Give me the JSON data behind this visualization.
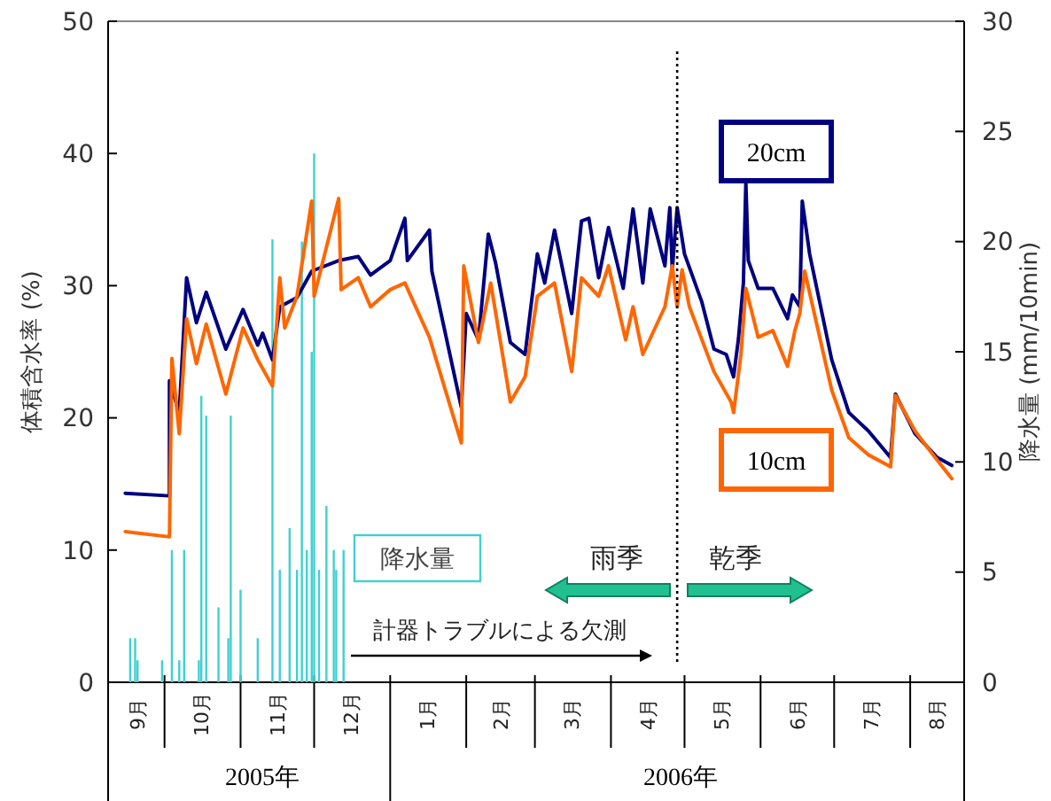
{
  "chart_data": {
    "type": "line",
    "ylabel": "体積含水率 (%)",
    "y2label": "降水量 (mm/10min)",
    "xlim": [
      "2005-09-08",
      "2006-08-23"
    ],
    "xticks": [
      {
        "value": "2005-09-20",
        "label": "9月"
      },
      {
        "value": "2005-10-01",
        "label": null
      },
      {
        "value": "2005-10-16",
        "label": "10月"
      },
      {
        "value": "2005-11-01",
        "label": null
      },
      {
        "value": "2005-11-16",
        "label": "11月"
      },
      {
        "value": "2005-12-01",
        "label": null
      },
      {
        "value": "2005-12-16",
        "label": "12月"
      },
      {
        "value": "2006-01-01",
        "label": null
      },
      {
        "value": "2006-01-16",
        "label": "1月"
      },
      {
        "value": "2006-02-01",
        "label": null
      },
      {
        "value": "2006-02-15",
        "label": "2月"
      },
      {
        "value": "2006-03-01",
        "label": null
      },
      {
        "value": "2006-03-16",
        "label": "3月"
      },
      {
        "value": "2006-04-01",
        "label": null
      },
      {
        "value": "2006-04-16",
        "label": "4月"
      },
      {
        "value": "2006-05-01",
        "label": null
      },
      {
        "value": "2006-05-16",
        "label": "5月"
      },
      {
        "value": "2006-06-01",
        "label": null
      },
      {
        "value": "2006-06-16",
        "label": "6月"
      },
      {
        "value": "2006-07-01",
        "label": null
      },
      {
        "value": "2006-07-16",
        "label": "7月"
      },
      {
        "value": "2006-08-01",
        "label": null
      },
      {
        "value": "2006-08-12",
        "label": "8月"
      }
    ],
    "ylim": [
      0,
      50
    ],
    "yticks": [
      0,
      10,
      20,
      30,
      40,
      50
    ],
    "y2lim": [
      0,
      30
    ],
    "y2ticks": [
      0,
      5,
      10,
      15,
      20,
      25,
      30
    ],
    "grid": false,
    "line_style": "solid",
    "marker": "none",
    "ref_lines": [
      {
        "axis": "x",
        "value": "2006-04-28",
        "line_style": "dotted",
        "color": "#000000"
      }
    ],
    "annotations": [
      "2005年",
      "2006年",
      "雨季",
      "乾季",
      "計器トラブルによる欠測"
    ],
    "series": [
      {
        "name": "20cm",
        "color": "#000080",
        "x": [
          "2005-09-15",
          "2005-10-03",
          "2005-10-03",
          "2005-10-07",
          "2005-10-10",
          "2005-10-14",
          "2005-10-18",
          "2005-10-26",
          "2005-11-02",
          "2005-11-08",
          "2005-11-10",
          "2005-11-14",
          "2005-11-17",
          "2005-11-24",
          "2005-11-30",
          "2005-12-11",
          "2005-12-19",
          "2005-12-24",
          "2006-01-01",
          "2006-01-07",
          "2006-01-08",
          "2006-01-17",
          "2006-01-18",
          "2006-01-30",
          "2006-02-01",
          "2006-02-06",
          "2006-02-10",
          "2006-02-13",
          "2006-02-19",
          "2006-02-25",
          "2006-03-02",
          "2006-03-05",
          "2006-03-09",
          "2006-03-16",
          "2006-03-20",
          "2006-03-23",
          "2006-03-27",
          "2006-03-31",
          "2006-04-06",
          "2006-04-10",
          "2006-04-14",
          "2006-04-17",
          "2006-04-23",
          "2006-04-25",
          "2006-04-26",
          "2006-04-28",
          "2006-05-01",
          "2006-05-08",
          "2006-05-13",
          "2006-05-18",
          "2006-05-21",
          "2006-05-23",
          "2006-05-25",
          "2006-05-26",
          "2006-05-27",
          "2006-05-31",
          "2006-06-06",
          "2006-06-12",
          "2006-06-14",
          "2006-06-17",
          "2006-06-18",
          "2006-06-21",
          "2006-06-30",
          "2006-07-07",
          "2006-07-15",
          "2006-07-24",
          "2006-07-26",
          "2006-08-03",
          "2006-08-12",
          "2006-08-18"
        ],
        "values": [
          14.3,
          14.1,
          22.8,
          20.4,
          30.6,
          27.2,
          29.5,
          25.2,
          28.2,
          25.5,
          26.4,
          24.4,
          28.4,
          29.1,
          31.1,
          31.9,
          32.2,
          30.8,
          31.9,
          35.1,
          31.9,
          34.2,
          31.1,
          20.8,
          27.9,
          25.9,
          33.9,
          31.7,
          25.7,
          24.8,
          32.4,
          30.2,
          34.2,
          27.9,
          34.9,
          35.1,
          30.6,
          34.4,
          29.8,
          35.8,
          30.2,
          35.8,
          31.5,
          35.9,
          31.2,
          35.9,
          32.4,
          28.8,
          25.2,
          24.8,
          23.1,
          26.0,
          30.2,
          37.8,
          31.9,
          29.8,
          29.8,
          27.5,
          29.3,
          28.4,
          36.4,
          32.4,
          24.4,
          20.4,
          19.0,
          17.0,
          21.8,
          18.8,
          17.0,
          16.4
        ]
      },
      {
        "name": "10cm",
        "color": "#ff6600",
        "x": [
          "2005-09-15",
          "2005-10-03",
          "2005-10-04",
          "2005-10-07",
          "2005-10-10",
          "2005-10-14",
          "2005-10-18",
          "2005-10-26",
          "2005-11-02",
          "2005-11-08",
          "2005-11-14",
          "2005-11-17",
          "2005-11-19",
          "2005-11-24",
          "2005-11-30",
          "2005-12-01",
          "2005-12-11",
          "2005-12-12",
          "2005-12-19",
          "2005-12-24",
          "2006-01-01",
          "2006-01-07",
          "2006-01-17",
          "2006-01-30",
          "2006-01-31",
          "2006-02-06",
          "2006-02-11",
          "2006-02-19",
          "2006-02-25",
          "2006-03-02",
          "2006-03-09",
          "2006-03-16",
          "2006-03-20",
          "2006-03-27",
          "2006-03-31",
          "2006-04-07",
          "2006-04-10",
          "2006-04-14",
          "2006-04-23",
          "2006-04-26",
          "2006-04-28",
          "2006-04-30",
          "2006-05-03",
          "2006-05-13",
          "2006-05-20",
          "2006-05-21",
          "2006-05-24",
          "2006-05-26",
          "2006-05-31",
          "2006-06-06",
          "2006-06-12",
          "2006-06-15",
          "2006-06-17",
          "2006-06-19",
          "2006-06-30",
          "2006-07-07",
          "2006-07-15",
          "2006-07-24",
          "2006-07-26",
          "2006-08-03",
          "2006-08-12",
          "2006-08-18"
        ],
        "values": [
          11.4,
          11.0,
          24.5,
          18.8,
          27.5,
          24.1,
          27.1,
          21.8,
          26.8,
          24.4,
          22.4,
          30.6,
          26.8,
          29.2,
          36.4,
          29.2,
          36.6,
          29.7,
          30.6,
          28.4,
          29.7,
          30.2,
          26.1,
          18.1,
          31.5,
          25.7,
          30.2,
          21.2,
          23.1,
          29.2,
          30.2,
          23.5,
          30.6,
          29.2,
          31.5,
          25.9,
          28.4,
          24.8,
          28.4,
          31.5,
          28.4,
          31.2,
          28.4,
          23.5,
          21.2,
          20.4,
          24.8,
          29.8,
          26.1,
          26.6,
          23.9,
          26.6,
          27.9,
          31.1,
          22.1,
          18.5,
          17.2,
          16.3,
          21.7,
          19.0,
          16.8,
          15.4
        ]
      },
      {
        "name": "降水量",
        "type": "bar",
        "axis": "y2",
        "color": "#40d0d0",
        "x": [
          "2005-09-17",
          "2005-09-19",
          "2005-09-20",
          "2005-09-30",
          "2005-10-04",
          "2005-10-07",
          "2005-10-09",
          "2005-10-15",
          "2005-10-16",
          "2005-10-18",
          "2005-10-23",
          "2005-10-27",
          "2005-10-28",
          "2005-11-01",
          "2005-11-08",
          "2005-11-14",
          "2005-11-17",
          "2005-11-21",
          "2005-11-24",
          "2005-11-26",
          "2005-11-28",
          "2005-11-30",
          "2005-12-01",
          "2005-12-03",
          "2005-12-06",
          "2005-12-09",
          "2005-12-10",
          "2005-12-13"
        ],
        "values": [
          2.0,
          2.0,
          1.0,
          1.0,
          6.0,
          1.0,
          6.0,
          1.0,
          13.0,
          12.1,
          3.4,
          2.0,
          12.1,
          4.2,
          2.0,
          20.1,
          5.1,
          7.0,
          5.1,
          20.0,
          6.0,
          15.0,
          24.0,
          5.1,
          8.0,
          6.0,
          5.1,
          6.0
        ]
      }
    ]
  }
}
